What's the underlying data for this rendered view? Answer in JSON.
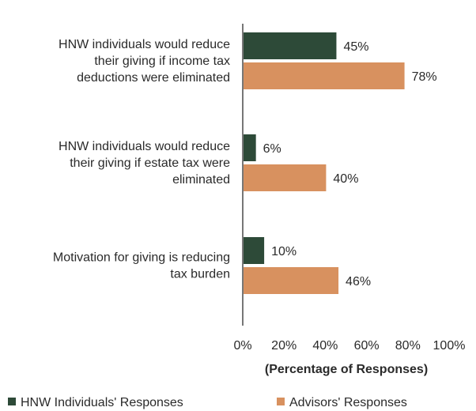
{
  "chart_data": {
    "type": "bar",
    "orientation": "horizontal",
    "categories": [
      [
        "HNW individuals would reduce",
        "their giving if income tax",
        "deductions were eliminated"
      ],
      [
        "HNW individuals would reduce",
        "their giving if estate tax were",
        "eliminated"
      ],
      [
        "Motivation for giving is reducing",
        "tax burden"
      ]
    ],
    "series": [
      {
        "name": "HNW Individuals' Responses",
        "color": "#2d4a38",
        "values": [
          45,
          6,
          10
        ],
        "labels": [
          "45%",
          "6%",
          "10%"
        ]
      },
      {
        "name": "Advisors' Responses",
        "color": "#d8915f",
        "values": [
          78,
          40,
          46
        ],
        "labels": [
          "78%",
          "40%",
          "46%"
        ]
      }
    ],
    "xlim": [
      0,
      100
    ],
    "xticks": [
      "0%",
      "20%",
      "40%",
      "60%",
      "80%",
      "100%"
    ],
    "xlabel": "(Percentage of Responses)",
    "legend": "bottom",
    "grid": false
  }
}
